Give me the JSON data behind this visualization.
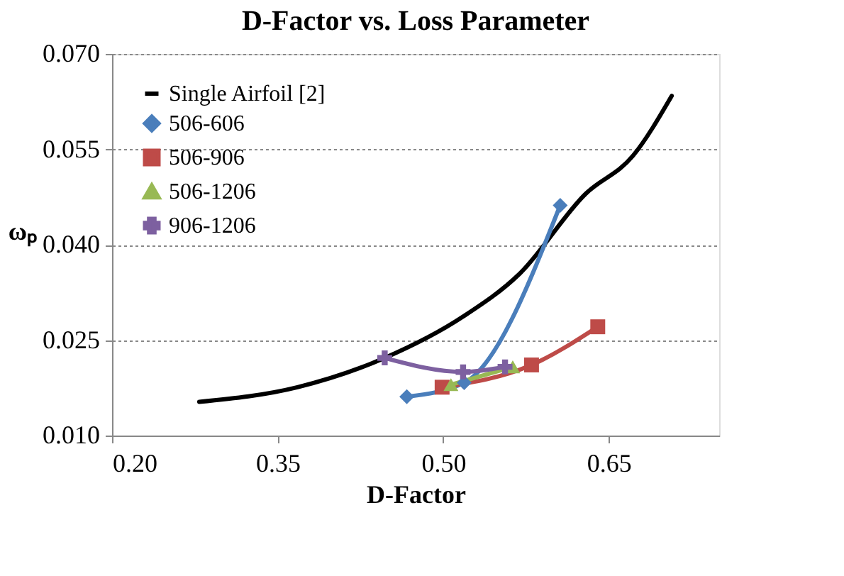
{
  "chart_data": {
    "type": "line",
    "title": "D-Factor vs. Loss Parameter",
    "xlabel": "D-Factor",
    "ylabel": "ωₚ",
    "xlim": [
      0.2,
      0.75
    ],
    "xticks": [
      {
        "value": 0.2,
        "label": "0.20"
      },
      0.35,
      {
        "value": 0.5,
        "label": "0.50"
      },
      0.65
    ],
    "ylim": [
      0.01,
      0.07
    ],
    "yticks": [
      {
        "value": 0.01,
        "label": "0.010"
      },
      {
        "value": 0.025,
        "label": "0.025"
      },
      {
        "value": 0.04,
        "label": "0.040"
      },
      {
        "value": 0.055,
        "label": "0.055"
      },
      {
        "value": 0.07,
        "label": "0.070"
      }
    ],
    "grid": "y",
    "legend": "top left",
    "line_style": "solid",
    "series": [
      {
        "name": "Single Airfoil [2]",
        "color": "#000000",
        "marker": "none",
        "x": [
          0.279,
          0.368,
          0.447,
          0.518,
          0.569,
          0.629,
          0.672,
          0.707
        ],
        "values": [
          0.0153,
          0.0176,
          0.0222,
          0.0287,
          0.0354,
          0.048,
          0.054,
          0.0634
        ]
      },
      {
        "name": "506-606",
        "color": "#4a7ebb",
        "marker": "diamond",
        "x": [
          0.467,
          0.519,
          0.606
        ],
        "values": [
          0.0161,
          0.0183,
          0.0462
        ]
      },
      {
        "name": "506-906",
        "color": "#be4b48",
        "marker": "square",
        "x": [
          0.499,
          0.58,
          0.64
        ],
        "values": [
          0.0176,
          0.0211,
          0.0271
        ]
      },
      {
        "name": "506-1206",
        "color": "#98b954",
        "marker": "triangle",
        "x": [
          0.507,
          0.563
        ],
        "values": [
          0.018,
          0.0208
        ]
      },
      {
        "name": "906-1206",
        "color": "#7d60a0",
        "marker": "cross",
        "x": [
          0.447,
          0.518,
          0.556
        ],
        "values": [
          0.0222,
          0.02,
          0.0208
        ]
      }
    ]
  }
}
